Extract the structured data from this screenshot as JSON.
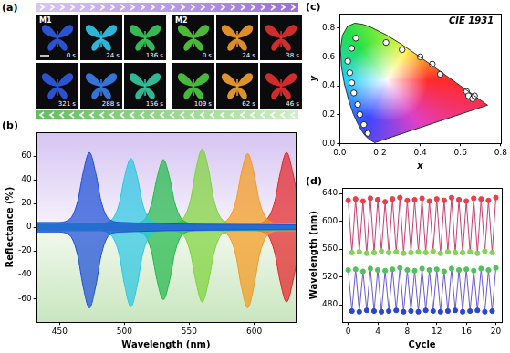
{
  "photos": {
    "label": "(a)",
    "groups": [
      {
        "name": "M1",
        "top": [
          {
            "time": "0 s",
            "color": "#2f5ae0"
          },
          {
            "time": "24 s",
            "color": "#30c4e6"
          },
          {
            "time": "136 s",
            "color": "#38c95a"
          }
        ],
        "bottom": [
          {
            "time": "321 s",
            "color": "#2f5ae0"
          },
          {
            "time": "288 s",
            "color": "#3a7de6"
          },
          {
            "time": "156 s",
            "color": "#34c8a0"
          }
        ]
      },
      {
        "name": "M2",
        "top": [
          {
            "time": "0 s",
            "color": "#52c83e"
          },
          {
            "time": "24 s",
            "color": "#f09a2a"
          },
          {
            "time": "38 s",
            "color": "#e03030"
          }
        ],
        "bottom": [
          {
            "time": "109 s",
            "color": "#4cc840"
          },
          {
            "time": "62 s",
            "color": "#f0a030"
          },
          {
            "time": "46 s",
            "color": "#e03030"
          }
        ]
      }
    ]
  },
  "chart_data": [
    {
      "type": "area",
      "panel": "(b)",
      "x_label": "Wavelength (nm)",
      "y_label": "Reflectance (%)",
      "xlim": [
        432,
        632
      ],
      "xticks": [
        450,
        500,
        550,
        600
      ],
      "ylim": [
        -80,
        80
      ],
      "yticks": [
        -60,
        -40,
        -20,
        0,
        20,
        40,
        60
      ],
      "grid": false,
      "series": [
        {
          "color": "#1f4fd6",
          "x": [
            432,
            448,
            458,
            464,
            468,
            473,
            478,
            482,
            488,
            498,
            632
          ],
          "values": [
            4,
            4,
            7,
            22,
            45,
            63,
            45,
            22,
            7,
            4,
            2
          ]
        },
        {
          "color": "#2cc6e2",
          "x": [
            432,
            480,
            490,
            496,
            500,
            505,
            510,
            514,
            520,
            530,
            632
          ],
          "values": [
            3,
            3,
            6,
            20,
            42,
            58,
            42,
            20,
            6,
            3,
            2
          ]
        },
        {
          "color": "#22b84a",
          "x": [
            432,
            505,
            515,
            521,
            525,
            530,
            535,
            539,
            545,
            555,
            632
          ],
          "values": [
            2,
            3,
            6,
            20,
            41,
            57,
            41,
            20,
            6,
            3,
            2
          ]
        },
        {
          "color": "#7ed23c",
          "x": [
            432,
            535,
            545,
            551,
            555,
            560,
            565,
            569,
            575,
            585,
            632
          ],
          "values": [
            2,
            3,
            7,
            23,
            48,
            66,
            48,
            23,
            7,
            3,
            2
          ]
        },
        {
          "color": "#f29a1e",
          "x": [
            432,
            570,
            580,
            586,
            590,
            595,
            600,
            604,
            610,
            620,
            632
          ],
          "values": [
            1,
            3,
            7,
            22,
            45,
            62,
            45,
            22,
            7,
            3,
            3
          ]
        },
        {
          "color": "#e0262a",
          "x": [
            432,
            600,
            610,
            616,
            620,
            625,
            630,
            634
          ],
          "values": [
            1,
            3,
            7,
            22,
            45,
            63,
            45,
            22
          ]
        },
        {
          "color": "#1f4fd6",
          "x": [
            432,
            448,
            458,
            464,
            468,
            473,
            478,
            482,
            488,
            498,
            632
          ],
          "values": [
            -4,
            -4,
            -7,
            -24,
            -49,
            -68,
            -49,
            -24,
            -7,
            -4,
            -2
          ]
        },
        {
          "color": "#2cc6e2",
          "x": [
            432,
            480,
            490,
            496,
            500,
            505,
            510,
            514,
            520,
            530,
            632
          ],
          "values": [
            -3,
            -3,
            -7,
            -23,
            -48,
            -67,
            -48,
            -23,
            -7,
            -3,
            -2
          ]
        },
        {
          "color": "#22b84a",
          "x": [
            432,
            505,
            515,
            521,
            525,
            530,
            535,
            539,
            545,
            555,
            632
          ],
          "values": [
            -2,
            -3,
            -6,
            -21,
            -44,
            -61,
            -44,
            -21,
            -6,
            -3,
            -2
          ]
        },
        {
          "color": "#7ed23c",
          "x": [
            432,
            535,
            545,
            551,
            555,
            560,
            565,
            569,
            575,
            585,
            632
          ],
          "values": [
            -2,
            -3,
            -6,
            -22,
            -45,
            -63,
            -45,
            -22,
            -6,
            -3,
            -2
          ]
        },
        {
          "color": "#f29a1e",
          "x": [
            432,
            570,
            580,
            586,
            590,
            595,
            600,
            604,
            610,
            620,
            632
          ],
          "values": [
            -1,
            -3,
            -7,
            -24,
            -49,
            -68,
            -49,
            -24,
            -7,
            -3,
            -3
          ]
        },
        {
          "color": "#e0262a",
          "x": [
            432,
            600,
            610,
            616,
            620,
            625,
            630,
            634
          ],
          "values": [
            -1,
            -3,
            -6,
            -22,
            -45,
            -63,
            -45,
            -22
          ]
        }
      ]
    },
    {
      "type": "scatter",
      "panel": "(c)",
      "annotation": "CIE 1931",
      "x_label": "x",
      "y_label": "y",
      "xlim": [
        0,
        0.8
      ],
      "xticks": [
        {
          "value": 0,
          "label": "0.0"
        },
        0.2,
        0.4,
        0.6,
        0.8
      ],
      "ylim": [
        0,
        0.9
      ],
      "yticks": [
        {
          "value": 0,
          "label": "0.0"
        },
        0.2,
        0.4,
        0.6,
        0.8
      ],
      "grid": false,
      "series": [
        {
          "type": "area",
          "color": "#333333",
          "x": [
            0.1741,
            0.144,
            0.1241,
            0.1096,
            0.0913,
            0.0687,
            0.0454,
            0.0235,
            0.0082,
            0.0039,
            0.0139,
            0.0389,
            0.0743,
            0.1142,
            0.1547,
            0.2296,
            0.3016,
            0.3731,
            0.4441,
            0.5125,
            0.5752,
            0.627,
            0.6915,
            0.7347,
            0.1741
          ],
          "values": [
            0.005,
            0.0297,
            0.0578,
            0.0868,
            0.1327,
            0.2007,
            0.295,
            0.4127,
            0.5384,
            0.6548,
            0.7502,
            0.812,
            0.8338,
            0.8262,
            0.8059,
            0.7543,
            0.6923,
            0.6245,
            0.5547,
            0.4866,
            0.4242,
            0.3725,
            0.3083,
            0.2653,
            0.005
          ]
        },
        {
          "type": "scatter",
          "color": "#ffffff",
          "marker": "circle",
          "x": [
            0.08,
            0.06,
            0.04,
            0.05,
            0.06,
            0.07,
            0.09,
            0.1,
            0.12,
            0.14,
            0.23,
            0.31,
            0.4,
            0.46,
            0.5,
            0.63,
            0.64,
            0.66,
            0.67
          ],
          "values": [
            0.73,
            0.66,
            0.57,
            0.49,
            0.42,
            0.35,
            0.27,
            0.2,
            0.13,
            0.07,
            0.7,
            0.65,
            0.6,
            0.55,
            0.48,
            0.36,
            0.33,
            0.31,
            0.33
          ]
        }
      ]
    },
    {
      "type": "line",
      "panel": "(d)",
      "x_label": "Cycle",
      "y_label": "Wavelength (nm)",
      "xlim": [
        -0.8,
        20.8
      ],
      "xticks": [
        0,
        4,
        8,
        12,
        16,
        20
      ],
      "ylim": [
        455,
        648
      ],
      "yticks": [
        480,
        520,
        560,
        600,
        640
      ],
      "grid": false,
      "series": [
        {
          "color": "#c8406e",
          "marker": "circle",
          "x": [
            0,
            0.5,
            1,
            1.5,
            2,
            2.5,
            3,
            3.5,
            4,
            4.5,
            5,
            5.5,
            6,
            6.5,
            7,
            7.5,
            8,
            8.5,
            9,
            9.5,
            10,
            10.5,
            11,
            11.5,
            12,
            12.5,
            13,
            13.5,
            14,
            14.5,
            15,
            15.5,
            16,
            16.5,
            17,
            17.5,
            18,
            18.5,
            19,
            19.5,
            20
          ],
          "values": [
            630,
            555,
            632,
            556,
            629,
            554,
            633,
            555,
            631,
            557,
            628,
            555,
            632,
            556,
            634,
            554,
            630,
            555,
            631,
            556,
            633,
            555,
            629,
            557,
            632,
            554,
            630,
            556,
            634,
            555,
            631,
            555,
            629,
            556,
            633,
            554,
            632,
            557,
            630,
            555,
            634
          ],
          "colors": [
            "#e8404a",
            "#7fd650",
            "#e8404a",
            "#7fd650",
            "#e8404a",
            "#7fd650",
            "#e8404a",
            "#7fd650",
            "#e8404a",
            "#7fd650",
            "#e8404a",
            "#7fd650",
            "#e8404a",
            "#7fd650",
            "#e8404a",
            "#7fd650",
            "#e8404a",
            "#7fd650",
            "#e8404a",
            "#7fd650",
            "#e8404a",
            "#7fd650",
            "#e8404a",
            "#7fd650",
            "#e8404a",
            "#7fd650",
            "#e8404a",
            "#7fd650",
            "#e8404a",
            "#7fd650",
            "#e8404a",
            "#7fd650",
            "#e8404a",
            "#7fd650",
            "#e8404a",
            "#7fd650",
            "#e8404a",
            "#7fd650",
            "#e8404a",
            "#7fd650",
            "#e8404a"
          ]
        },
        {
          "color": "#6a5ad0",
          "marker": "circle",
          "x": [
            0,
            0.5,
            1,
            1.5,
            2,
            2.5,
            3,
            3.5,
            4,
            4.5,
            5,
            5.5,
            6,
            6.5,
            7,
            7.5,
            8,
            8.5,
            9,
            9.5,
            10,
            10.5,
            11,
            11.5,
            12,
            12.5,
            13,
            13.5,
            14,
            14.5,
            15,
            15.5,
            16,
            16.5,
            17,
            17.5,
            18,
            18.5,
            19,
            19.5,
            20
          ],
          "values": [
            530,
            471,
            531,
            470,
            528,
            472,
            532,
            471,
            530,
            470,
            529,
            471,
            531,
            472,
            533,
            470,
            530,
            471,
            529,
            470,
            532,
            472,
            530,
            471,
            531,
            470,
            528,
            471,
            532,
            472,
            530,
            470,
            531,
            471,
            529,
            472,
            532,
            470,
            530,
            471,
            533
          ],
          "colors": [
            "#4fc35a",
            "#2a44d8",
            "#4fc35a",
            "#2a44d8",
            "#4fc35a",
            "#2a44d8",
            "#4fc35a",
            "#2a44d8",
            "#4fc35a",
            "#2a44d8",
            "#4fc35a",
            "#2a44d8",
            "#4fc35a",
            "#2a44d8",
            "#4fc35a",
            "#2a44d8",
            "#4fc35a",
            "#2a44d8",
            "#4fc35a",
            "#2a44d8",
            "#4fc35a",
            "#2a44d8",
            "#4fc35a",
            "#2a44d8",
            "#4fc35a",
            "#2a44d8",
            "#4fc35a",
            "#2a44d8",
            "#4fc35a",
            "#2a44d8",
            "#4fc35a",
            "#2a44d8",
            "#4fc35a",
            "#2a44d8",
            "#4fc35a",
            "#2a44d8",
            "#4fc35a",
            "#2a44d8",
            "#4fc35a",
            "#2a44d8",
            "#4fc35a"
          ]
        }
      ]
    }
  ]
}
